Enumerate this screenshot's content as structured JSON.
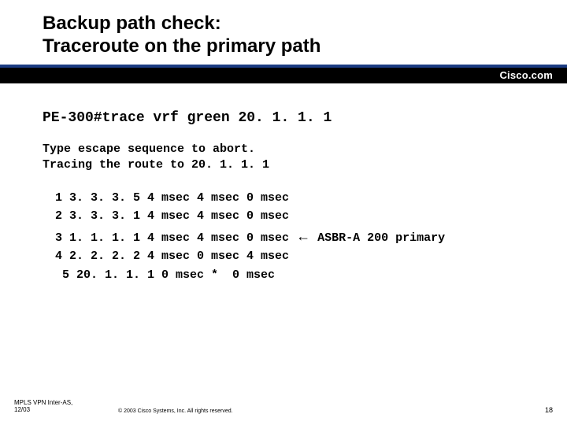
{
  "title_line1": "Backup path check:",
  "title_line2": "Traceroute on the primary path",
  "cisco_label": "Cisco.com",
  "command": "PE-300#trace vrf green 20. 1. 1. 1",
  "msg_line1": "Type escape sequence to abort.",
  "msg_line2": "Tracing the route to 20. 1. 1. 1",
  "hops": [
    "1 3. 3. 3. 5 4 msec 4 msec 0 msec",
    "2 3. 3. 3. 1 4 msec 4 msec 0 msec",
    "3 1. 1. 1. 1 4 msec 4 msec 0 msec",
    "4 2. 2. 2. 2 4 msec 0 msec 4 msec",
    " 5 20. 1. 1. 1 0 msec *  0 msec"
  ],
  "annotation_hop_index": 2,
  "annotation_arrow": "←",
  "annotation_text": " ASBR-A 200 primary",
  "footer_left_line1": "MPLS VPN Inter-AS,",
  "footer_left_line2": "12/03",
  "footer_copyright": "© 2003 Cisco Systems, Inc. All rights reserved.",
  "footer_page": "18",
  "colors": {
    "bar_blue": "#1b3b82",
    "bar_black": "#000000",
    "background": "#ffffff"
  }
}
